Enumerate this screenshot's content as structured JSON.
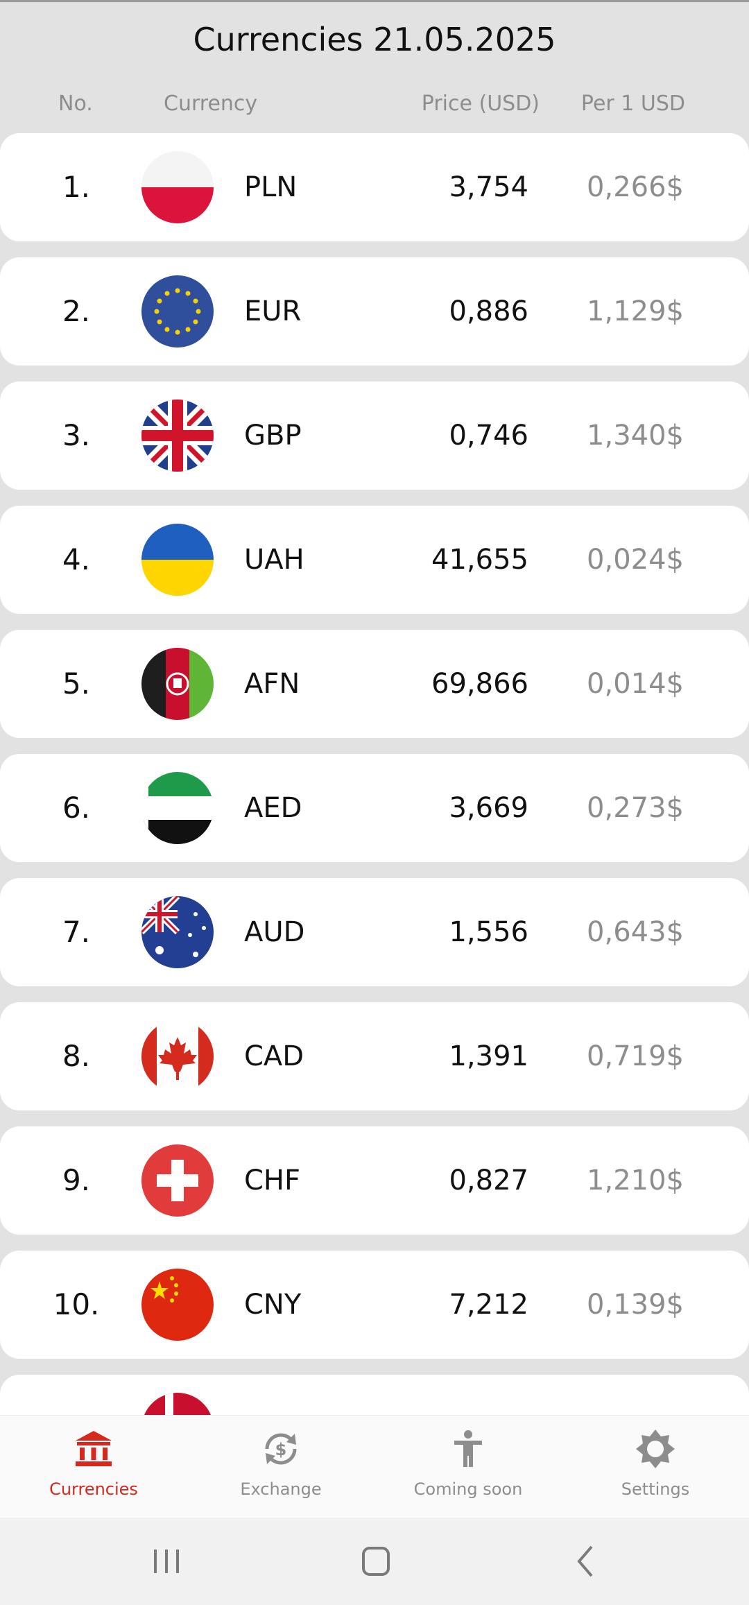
{
  "header": {
    "title": "Currencies 21.05.2025",
    "columns": {
      "no": "No.",
      "currency": "Currency",
      "price": "Price (USD)",
      "per": "Per 1 USD"
    }
  },
  "rows": [
    {
      "no": "1.",
      "code": "PLN",
      "price": "3,754",
      "per": "0,266$",
      "flag": "poland-flag-icon"
    },
    {
      "no": "2.",
      "code": "EUR",
      "price": "0,886",
      "per": "1,129$",
      "flag": "eu-flag-icon"
    },
    {
      "no": "3.",
      "code": "GBP",
      "price": "0,746",
      "per": "1,340$",
      "flag": "uk-flag-icon"
    },
    {
      "no": "4.",
      "code": "UAH",
      "price": "41,655",
      "per": "0,024$",
      "flag": "ukraine-flag-icon"
    },
    {
      "no": "5.",
      "code": "AFN",
      "price": "69,866",
      "per": "0,014$",
      "flag": "afghanistan-flag-icon"
    },
    {
      "no": "6.",
      "code": "AED",
      "price": "3,669",
      "per": "0,273$",
      "flag": "uae-flag-icon"
    },
    {
      "no": "7.",
      "code": "AUD",
      "price": "1,556",
      "per": "0,643$",
      "flag": "australia-flag-icon"
    },
    {
      "no": "8.",
      "code": "CAD",
      "price": "1,391",
      "per": "0,719$",
      "flag": "canada-flag-icon"
    },
    {
      "no": "9.",
      "code": "CHF",
      "price": "0,827",
      "per": "1,210$",
      "flag": "switzerland-flag-icon"
    },
    {
      "no": "10.",
      "code": "CNY",
      "price": "7,212",
      "per": "0,139$",
      "flag": "china-flag-icon"
    }
  ],
  "partial_row_flag": "denmark-flag-icon",
  "nav": [
    {
      "label": "Currencies",
      "icon": "bank-icon",
      "active": true
    },
    {
      "label": "Exchange",
      "icon": "exchange-dollar-icon",
      "active": false
    },
    {
      "label": "Coming soon",
      "icon": "person-icon",
      "active": false
    },
    {
      "label": "Settings",
      "icon": "gear-icon",
      "active": false
    }
  ],
  "colors": {
    "accent": "#d7281e",
    "muted": "#8d8d8d",
    "background": "#e2e2e2"
  },
  "system_nav": [
    "recent-apps-icon",
    "home-icon",
    "back-icon"
  ]
}
